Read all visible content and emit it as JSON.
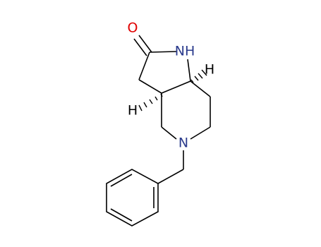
{
  "atoms": {
    "oxygen": "O",
    "ring_nitrogen": "NH",
    "amine_nitrogen": "N",
    "hydrogen_left": "H",
    "hydrogen_right": "H"
  }
}
